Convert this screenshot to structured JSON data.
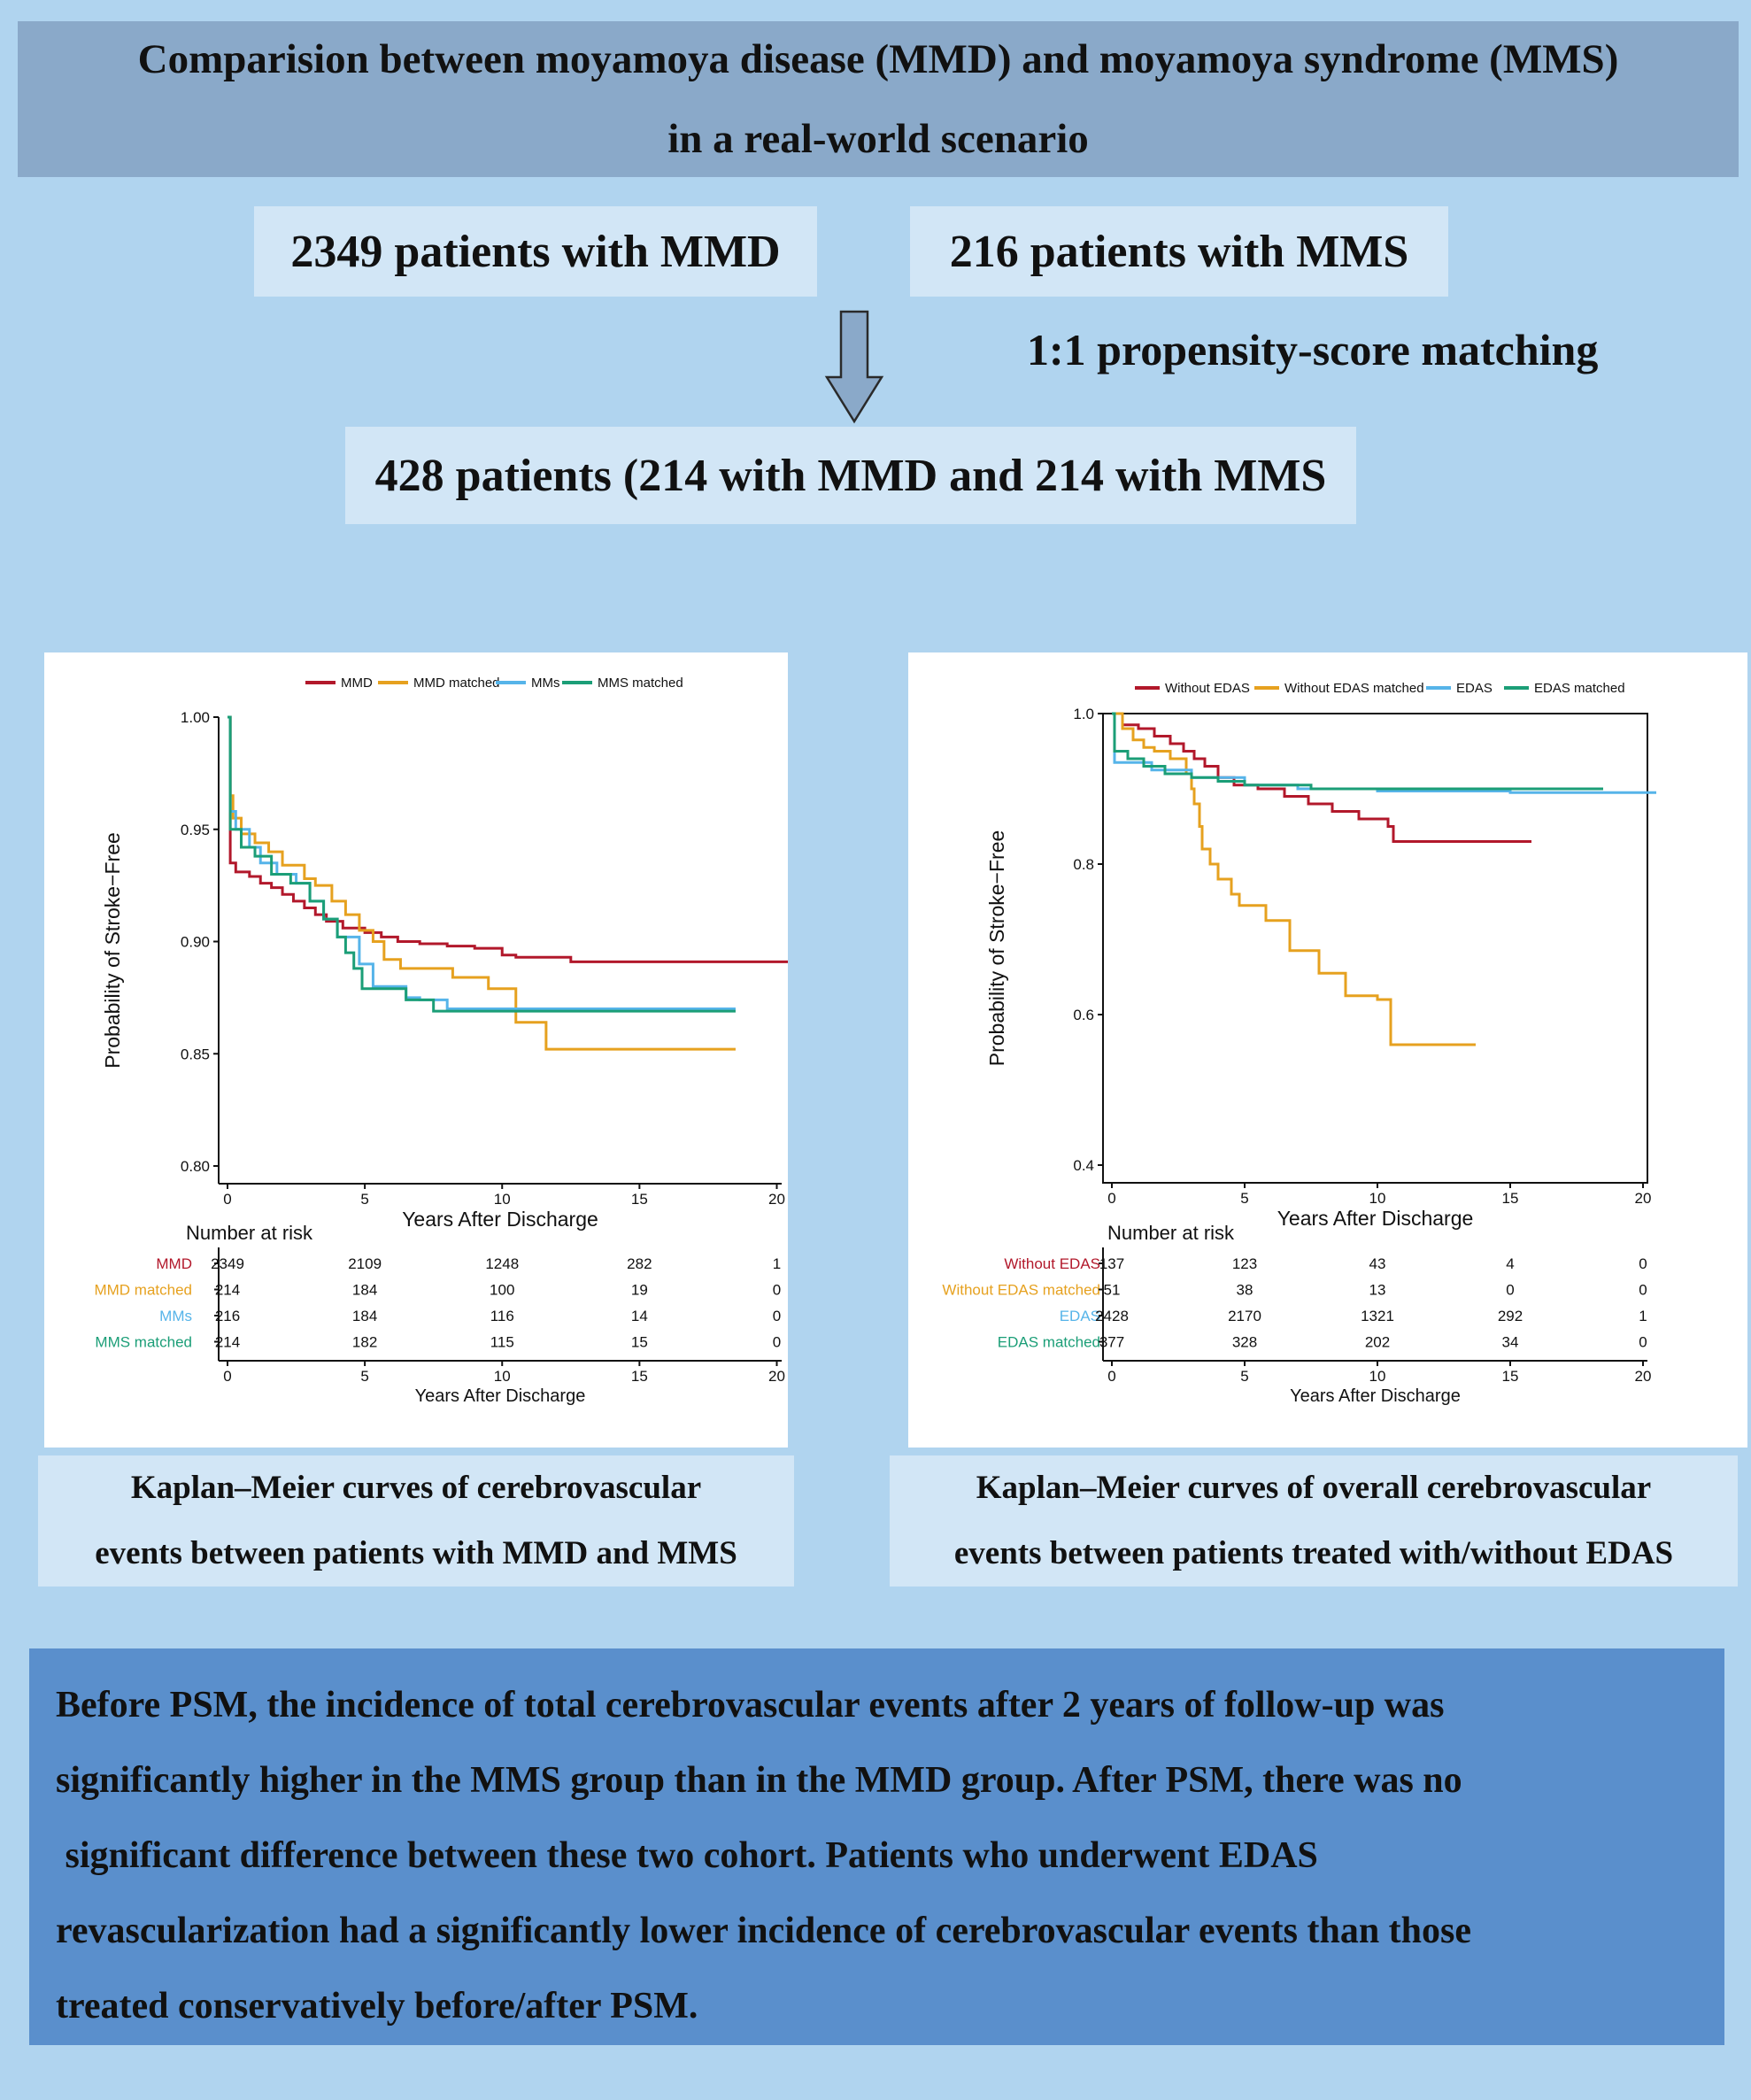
{
  "header": {
    "title_line1": "Comparision between moyamoya disease (MMD) and moyamoya syndrome (MMS)",
    "title_line2": "in a real-world scenario"
  },
  "flow": {
    "mmd_box": "2349 patients with MMD",
    "mms_box": "216 patients with MMS",
    "psm_label": "1:1 propensity-score matching",
    "matched_box": "428 patients (214 with MMD and 214 with MMS"
  },
  "captions": {
    "left_line1": "Kaplan–Meier curves of cerebrovascular",
    "left_line2": "events between patients with MMD and MMS",
    "right_line1": "Kaplan–Meier curves of overall cerebrovascular",
    "right_line2": "events between patients treated with/without EDAS"
  },
  "summary": {
    "line1": "Before PSM, the incidence of total cerebrovascular events after 2 years of follow-up was",
    "line2": "significantly higher in the MMS group than in the MMD group. After PSM, there was no",
    "line3": " significant difference between these two cohort. Patients who underwent EDAS",
    "line4": "revascularization had a significantly lower incidence of cerebrovascular events than those",
    "line5": "treated conservatively before/after PSM."
  },
  "colors": {
    "red": "#b2182b",
    "orange": "#e6a11f",
    "blue": "#56b4e9",
    "green": "#1b9e77",
    "arrow": "#8aa9c9"
  },
  "chart_data": [
    {
      "type": "line",
      "subtype": "kaplan-meier step",
      "xlabel": "Years After Discharge",
      "ylabel": "Probability of Stroke−Free",
      "xlim": [
        0,
        20.5
      ],
      "ylim": [
        0.8,
        1.0
      ],
      "xticks": [
        0,
        5,
        10,
        15,
        20
      ],
      "yticks": [
        "0.80",
        "0.85",
        "0.90",
        "0.95",
        "1.00"
      ],
      "legend_position": "top",
      "series": [
        {
          "name": "MMD",
          "color": "#b2182b",
          "points": [
            [
              0,
              1.0
            ],
            [
              0.1,
              0.935
            ],
            [
              0.3,
              0.931
            ],
            [
              0.8,
              0.929
            ],
            [
              1.2,
              0.926
            ],
            [
              1.6,
              0.924
            ],
            [
              2,
              0.921
            ],
            [
              2.4,
              0.918
            ],
            [
              2.8,
              0.915
            ],
            [
              3.2,
              0.912
            ],
            [
              3.6,
              0.909
            ],
            [
              4.2,
              0.906
            ],
            [
              5,
              0.904
            ],
            [
              5.6,
              0.902
            ],
            [
              6.2,
              0.9
            ],
            [
              7,
              0.899
            ],
            [
              8,
              0.898
            ],
            [
              9,
              0.897
            ],
            [
              10,
              0.894
            ],
            [
              10.5,
              0.893
            ],
            [
              12.5,
              0.891
            ],
            [
              20.5,
              0.891
            ]
          ]
        },
        {
          "name": "MMD matched",
          "color": "#e6a11f",
          "points": [
            [
              0,
              1.0
            ],
            [
              0.1,
              0.965
            ],
            [
              0.2,
              0.955
            ],
            [
              0.5,
              0.948
            ],
            [
              1,
              0.944
            ],
            [
              1.5,
              0.94
            ],
            [
              2,
              0.934
            ],
            [
              2.8,
              0.928
            ],
            [
              3.2,
              0.925
            ],
            [
              3.8,
              0.918
            ],
            [
              4.3,
              0.912
            ],
            [
              4.8,
              0.905
            ],
            [
              5.3,
              0.9
            ],
            [
              5.7,
              0.892
            ],
            [
              6.3,
              0.888
            ],
            [
              7,
              0.888
            ],
            [
              8.2,
              0.884
            ],
            [
              9,
              0.884
            ],
            [
              9.5,
              0.879
            ],
            [
              10.5,
              0.864
            ],
            [
              11.3,
              0.864
            ],
            [
              11.6,
              0.852
            ],
            [
              18.5,
              0.852
            ]
          ]
        },
        {
          "name": "MMs",
          "color": "#56b4e9",
          "points": [
            [
              0,
              1.0
            ],
            [
              0.1,
              0.958
            ],
            [
              0.3,
              0.95
            ],
            [
              0.8,
              0.942
            ],
            [
              1.2,
              0.935
            ],
            [
              1.8,
              0.93
            ],
            [
              2.5,
              0.926
            ],
            [
              3,
              0.918
            ],
            [
              3.5,
              0.91
            ],
            [
              4,
              0.902
            ],
            [
              4.8,
              0.89
            ],
            [
              5.3,
              0.88
            ],
            [
              6.5,
              0.875
            ],
            [
              7,
              0.874
            ],
            [
              8,
              0.87
            ],
            [
              9,
              0.87
            ],
            [
              10,
              0.87
            ],
            [
              18.5,
              0.87
            ]
          ]
        },
        {
          "name": "MMS matched",
          "color": "#1b9e77",
          "points": [
            [
              0,
              1.0
            ],
            [
              0.1,
              0.95
            ],
            [
              0.5,
              0.942
            ],
            [
              1,
              0.938
            ],
            [
              1.6,
              0.93
            ],
            [
              2.3,
              0.926
            ],
            [
              3,
              0.918
            ],
            [
              3.5,
              0.91
            ],
            [
              4,
              0.902
            ],
            [
              4.3,
              0.895
            ],
            [
              4.6,
              0.888
            ],
            [
              4.9,
              0.879
            ],
            [
              5.5,
              0.879
            ],
            [
              6.5,
              0.874
            ],
            [
              7,
              0.874
            ],
            [
              7.5,
              0.869
            ],
            [
              10,
              0.869
            ],
            [
              18.5,
              0.869
            ]
          ]
        }
      ],
      "risk_table": {
        "title": "Number at risk",
        "times": [
          0,
          5,
          10,
          15,
          20
        ],
        "xlabel": "Years After Discharge",
        "rows": [
          {
            "label": "MMD",
            "color": "#b2182b",
            "values": [
              2349,
              2109,
              1248,
              282,
              1
            ]
          },
          {
            "label": "MMD matched",
            "color": "#e6a11f",
            "values": [
              214,
              184,
              100,
              19,
              0
            ]
          },
          {
            "label": "MMs",
            "color": "#56b4e9",
            "values": [
              216,
              184,
              116,
              14,
              0
            ]
          },
          {
            "label": "MMS matched",
            "color": "#1b9e77",
            "values": [
              214,
              182,
              115,
              15,
              0
            ]
          }
        ]
      }
    },
    {
      "type": "line",
      "subtype": "kaplan-meier step",
      "xlabel": "Years After Discharge",
      "ylabel": "Probability of Stroke−Free",
      "xlim": [
        0,
        20.5
      ],
      "ylim": [
        0.4,
        1.0
      ],
      "xticks": [
        0,
        5,
        10,
        15,
        20
      ],
      "yticks": [
        "0.4",
        "0.6",
        "0.8",
        "1.0"
      ],
      "legend_position": "top",
      "series": [
        {
          "name": "Without EDAS",
          "color": "#b2182b",
          "points": [
            [
              0,
              1.0
            ],
            [
              0.4,
              0.985
            ],
            [
              1,
              0.98
            ],
            [
              1.6,
              0.97
            ],
            [
              2.2,
              0.96
            ],
            [
              2.7,
              0.95
            ],
            [
              3.1,
              0.94
            ],
            [
              3.5,
              0.93
            ],
            [
              4,
              0.915
            ],
            [
              4.6,
              0.905
            ],
            [
              5.5,
              0.9
            ],
            [
              6.5,
              0.89
            ],
            [
              7.4,
              0.88
            ],
            [
              8.3,
              0.87
            ],
            [
              9.3,
              0.86
            ],
            [
              10.4,
              0.85
            ],
            [
              10.6,
              0.83
            ],
            [
              15.8,
              0.83
            ]
          ]
        },
        {
          "name": "Without EDAS matched",
          "color": "#e6a11f",
          "points": [
            [
              0,
              1.0
            ],
            [
              0.4,
              0.98
            ],
            [
              0.8,
              0.965
            ],
            [
              1.2,
              0.955
            ],
            [
              1.6,
              0.95
            ],
            [
              2.2,
              0.94
            ],
            [
              2.8,
              0.92
            ],
            [
              3,
              0.9
            ],
            [
              3.1,
              0.88
            ],
            [
              3.3,
              0.85
            ],
            [
              3.4,
              0.82
            ],
            [
              3.7,
              0.8
            ],
            [
              4,
              0.78
            ],
            [
              4.5,
              0.76
            ],
            [
              4.8,
              0.745
            ],
            [
              5.8,
              0.725
            ],
            [
              6.7,
              0.685
            ],
            [
              7.8,
              0.655
            ],
            [
              8.8,
              0.625
            ],
            [
              10,
              0.62
            ],
            [
              10.5,
              0.56
            ],
            [
              13.7,
              0.56
            ]
          ]
        },
        {
          "name": "EDAS",
          "color": "#56b4e9",
          "points": [
            [
              0,
              1.0
            ],
            [
              0.1,
              0.935
            ],
            [
              1.5,
              0.925
            ],
            [
              3,
              0.915
            ],
            [
              5,
              0.905
            ],
            [
              7,
              0.9
            ],
            [
              10,
              0.897
            ],
            [
              15,
              0.895
            ],
            [
              20.5,
              0.895
            ]
          ]
        },
        {
          "name": "EDAS matched",
          "color": "#1b9e77",
          "points": [
            [
              0,
              1.0
            ],
            [
              0.1,
              0.95
            ],
            [
              0.6,
              0.94
            ],
            [
              1.2,
              0.93
            ],
            [
              2,
              0.92
            ],
            [
              3,
              0.915
            ],
            [
              4,
              0.91
            ],
            [
              5,
              0.905
            ],
            [
              7.5,
              0.9
            ],
            [
              18.5,
              0.9
            ]
          ]
        }
      ],
      "risk_table": {
        "title": "Number at risk",
        "times": [
          0,
          5,
          10,
          15,
          20
        ],
        "xlabel": "Years After Discharge",
        "rows": [
          {
            "label": "Without EDAS",
            "color": "#b2182b",
            "values": [
              137,
              123,
              43,
              4,
              0
            ]
          },
          {
            "label": "Without EDAS matched",
            "color": "#e6a11f",
            "values": [
              51,
              38,
              13,
              0,
              0
            ]
          },
          {
            "label": "EDAS",
            "color": "#56b4e9",
            "values": [
              2428,
              2170,
              1321,
              292,
              1
            ]
          },
          {
            "label": "EDAS matched",
            "color": "#1b9e77",
            "values": [
              377,
              328,
              202,
              34,
              0
            ]
          }
        ]
      }
    }
  ]
}
